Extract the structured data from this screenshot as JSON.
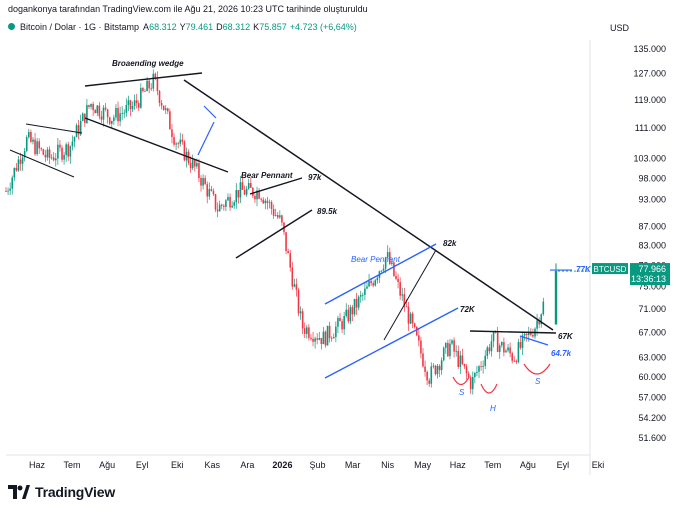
{
  "caption": "dogankonya tarafından TradingView.com ile Ağu 21, 2026 10:23 UTC tarihinde oluşturuldu",
  "header": {
    "symbol": "Bitcoin / Dolar · 1G · Bitstamp",
    "open_label": "A",
    "open": "68.312",
    "high_label": "Y",
    "high": "79.461",
    "low_label": "D",
    "low": "68.312",
    "close_label": "K",
    "close": "75.857",
    "change": "+4.723 (+6,64%)"
  },
  "brand": "TradingView",
  "colors": {
    "up": "#089981",
    "down": "#f23645",
    "pattern_black": "#131722",
    "pattern_blue": "#2962ff"
  },
  "chart_data": {
    "type": "candlestick",
    "currency_label": "USD",
    "y_ticks": [
      135000,
      127000,
      119000,
      111000,
      103000,
      98000,
      93000,
      87000,
      83000,
      79000,
      75000,
      71000,
      67000,
      63000,
      60000,
      57000,
      54200,
      51600
    ],
    "y_tick_labels": [
      "135.000",
      "127.000",
      "119.000",
      "111.000",
      "103.000",
      "98.000",
      "93.000",
      "87.000",
      "83.000",
      "79.000",
      "75.000",
      "71.000",
      "67.000",
      "63.000",
      "60.000",
      "57.000",
      "54.200",
      "51.600"
    ],
    "x_labels": [
      "Haz",
      "Tem",
      "Ağu",
      "Eyl",
      "Eki",
      "Kas",
      "Ara",
      "2026",
      "Şub",
      "Mar",
      "Nis",
      "May",
      "Haz",
      "Tem",
      "Ağu",
      "Eyl",
      "Eki"
    ],
    "y_log_scale": true,
    "price_path": [
      [
        0,
        95000
      ],
      [
        1,
        108000
      ],
      [
        2,
        103000
      ],
      [
        3,
        106000
      ],
      [
        4,
        118000
      ],
      [
        5,
        114000
      ],
      [
        6,
        117000
      ],
      [
        7,
        125000
      ],
      [
        8,
        108000
      ],
      [
        9,
        100000
      ],
      [
        10,
        91000
      ],
      [
        11,
        95000
      ],
      [
        12,
        95000
      ],
      [
        13,
        88000
      ],
      [
        14,
        68000
      ],
      [
        15,
        66000
      ],
      [
        16,
        69000
      ],
      [
        17,
        74000
      ],
      [
        18,
        81000
      ],
      [
        19,
        70000
      ],
      [
        20,
        60000
      ],
      [
        21,
        65000
      ],
      [
        22,
        59000
      ],
      [
        23,
        66000
      ],
      [
        24,
        63000
      ],
      [
        25,
        68000
      ],
      [
        26,
        77900
      ]
    ],
    "last_price": {
      "symbol": "BTCUSD",
      "price": "77.966",
      "countdown": "13:36:13",
      "value": 77966
    },
    "annotations": {
      "broadening_wedge": "Broaending wedge",
      "bear_pennant_1": "Bear Pennant",
      "bear_pennant_2": "Bear Pennant",
      "level_97k": "97k",
      "level_89k": "89.5k",
      "level_82k": "82k",
      "level_72k": "72K",
      "level_67k": "67K",
      "level_64k": "64.7k",
      "level_77k": "77K",
      "shoulder_left": "S",
      "head": "H",
      "shoulder_right": "S"
    }
  }
}
